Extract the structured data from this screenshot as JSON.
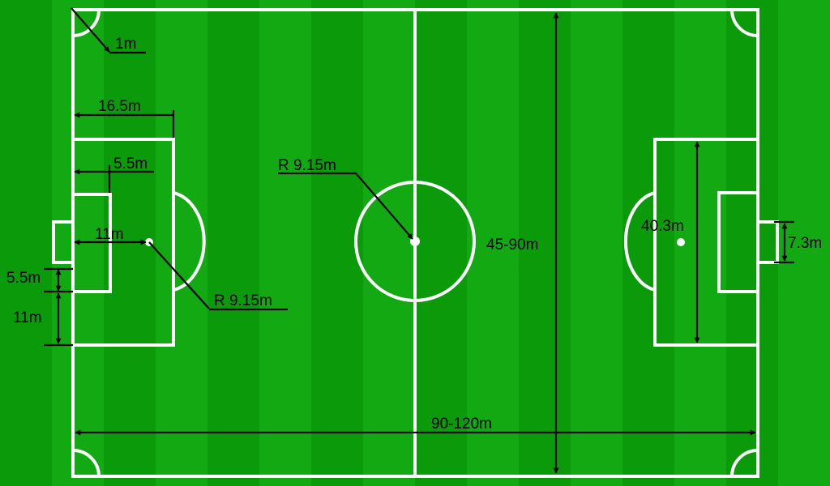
{
  "colors": {
    "grass_dark": "#0a9a0a",
    "grass_light": "#13a913",
    "lines": "#ffffff",
    "annotations": "#000000"
  },
  "labels": {
    "corner_arc": "1m",
    "penalty_area_depth": "16.5m",
    "goal_area_depth": "5.5m",
    "penalty_spot_distance": "11m",
    "penalty_arc_radius": "R 9.15m",
    "goal_area_offset": "5.5m",
    "penalty_area_offset": "11m",
    "center_circle_radius": "R 9.15m",
    "pitch_width": "45-90m",
    "penalty_area_width": "40.3m",
    "goal_width": "7.3m",
    "pitch_length": "90-120m"
  }
}
